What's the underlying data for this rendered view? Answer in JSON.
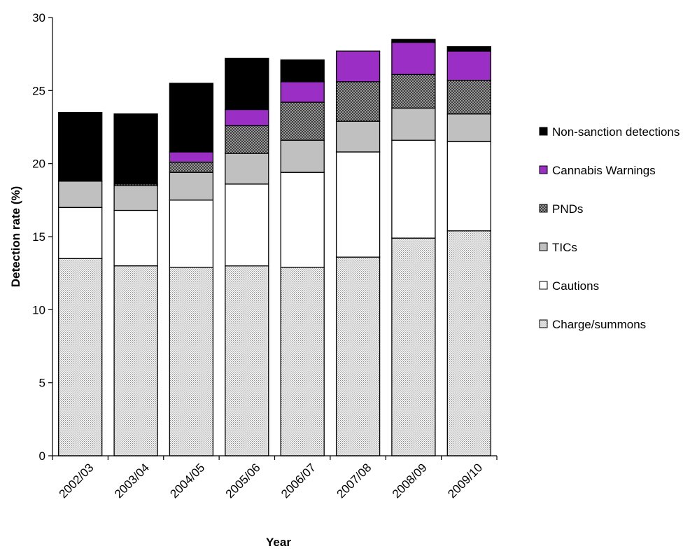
{
  "chart_data": {
    "type": "bar",
    "stacked": true,
    "title": "",
    "xlabel": "Year",
    "ylabel": "Detection rate (%)",
    "ylim": [
      0,
      30
    ],
    "yticks": [
      0,
      5,
      10,
      15,
      20,
      25,
      30
    ],
    "grid": false,
    "legend_position": "right",
    "categories": [
      "2002/03",
      "2003/04",
      "2004/05",
      "2005/06",
      "2006/07",
      "2007/08",
      "2008/09",
      "2009/10"
    ],
    "series": [
      {
        "name": "Charge/summons",
        "fill": "dots",
        "color": "#d9d9d9",
        "values": [
          13.5,
          13.0,
          12.9,
          13.0,
          12.9,
          13.6,
          14.9,
          15.4
        ]
      },
      {
        "name": "Cautions",
        "fill": "solid",
        "color": "#ffffff",
        "values": [
          3.5,
          3.8,
          4.6,
          5.6,
          6.5,
          7.2,
          6.7,
          6.1
        ]
      },
      {
        "name": "TICs",
        "fill": "solid",
        "color": "#c0c0c0",
        "values": [
          1.8,
          1.7,
          1.9,
          2.1,
          2.2,
          2.1,
          2.2,
          1.9
        ]
      },
      {
        "name": "PNDs",
        "fill": "crosshatch",
        "color": "#8c8c8c",
        "values": [
          0.0,
          0.1,
          0.7,
          1.9,
          2.6,
          2.7,
          2.3,
          2.3
        ]
      },
      {
        "name": "Cannabis Warnings",
        "fill": "solid",
        "color": "#9b2fc5",
        "values": [
          0.0,
          0.0,
          0.7,
          1.1,
          1.4,
          2.1,
          2.2,
          2.0
        ]
      },
      {
        "name": "Non-sanction detections",
        "fill": "solid",
        "color": "#000000",
        "values": [
          4.7,
          4.8,
          4.7,
          3.5,
          1.5,
          0.0,
          0.2,
          0.3
        ]
      }
    ]
  }
}
